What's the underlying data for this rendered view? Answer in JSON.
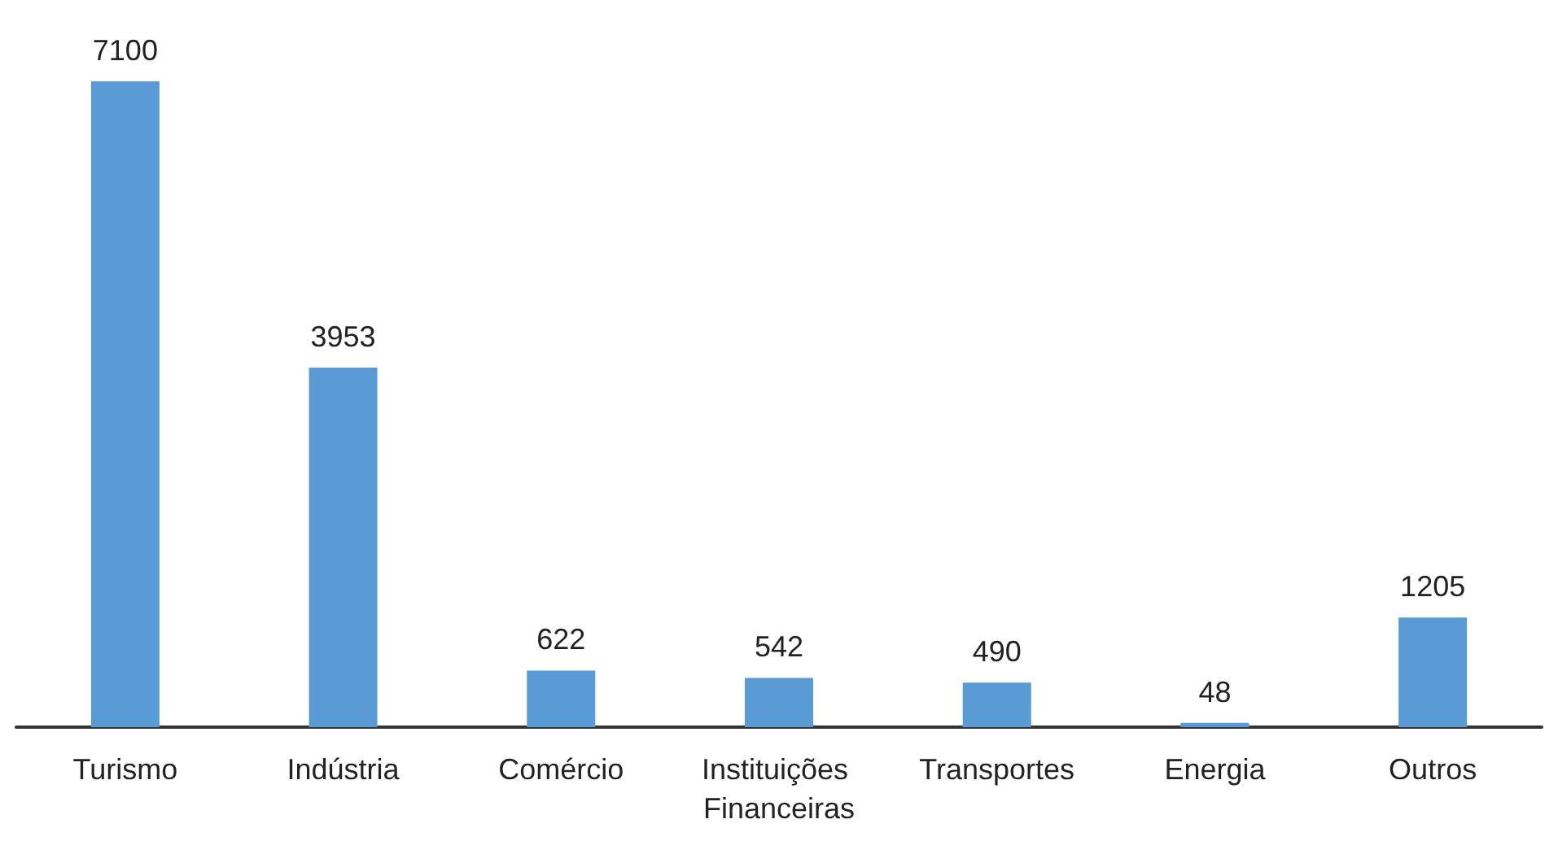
{
  "chart_data": {
    "type": "bar",
    "categories": [
      "Turismo",
      "Indústria",
      "Comércio",
      "Instituições Financeiras",
      "Transportes",
      "Energia",
      "Outros"
    ],
    "values": [
      7100,
      3953,
      622,
      542,
      490,
      48,
      1205
    ],
    "color": "#5b9bd5",
    "data_labels": true
  }
}
